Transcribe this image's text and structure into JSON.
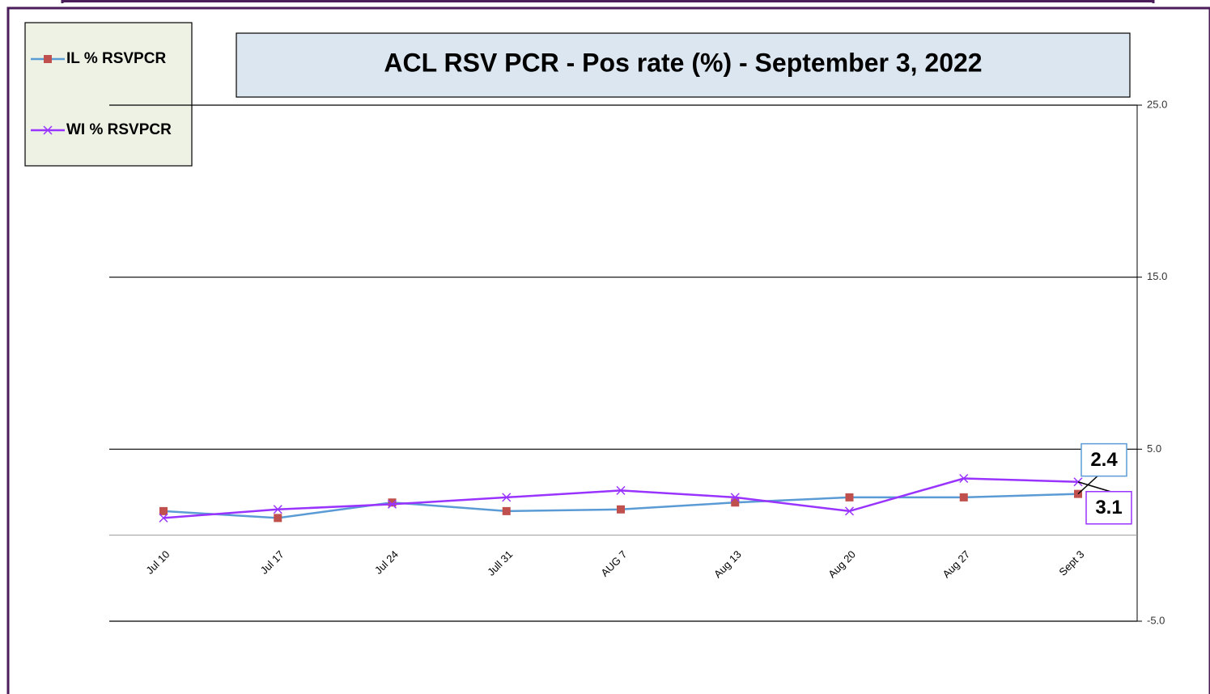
{
  "chart_data": {
    "type": "line",
    "title": "ACL RSV PCR - Pos rate (%) -  September 3, 2022",
    "categories": [
      "Jul 10",
      "Jul 17",
      "Jul 24",
      "Jull 31",
      "AUG 7",
      "Aug 13",
      "Aug 20",
      "Aug 27",
      "Sept 3"
    ],
    "series": [
      {
        "name": "IL % RSVPCR",
        "color": "#5b9bd5",
        "marker_color": "#c0504d",
        "marker": "square",
        "values": [
          1.4,
          1.0,
          1.9,
          1.4,
          1.5,
          1.9,
          2.2,
          2.2,
          2.4
        ],
        "value_labels": [
          null,
          null,
          null,
          null,
          null,
          null,
          null,
          null,
          "2.4"
        ]
      },
      {
        "name": "WI % RSVPCR",
        "color": "#9933ff",
        "marker_color": "#9933ff",
        "marker": "x",
        "values": [
          1.0,
          1.5,
          1.8,
          2.2,
          2.6,
          2.2,
          1.4,
          3.3,
          3.1
        ],
        "value_labels": [
          null,
          null,
          null,
          null,
          null,
          null,
          null,
          null,
          "3.1"
        ]
      }
    ],
    "ylim": [
      -5,
      25
    ],
    "yticks": [
      {
        "value": -5,
        "label": "-5.0"
      },
      {
        "value": 5,
        "label": "5.0"
      },
      {
        "value": 15,
        "label": "15.0"
      },
      {
        "value": 25,
        "label": "25.0"
      }
    ],
    "grid": true,
    "legend": "top-left"
  }
}
